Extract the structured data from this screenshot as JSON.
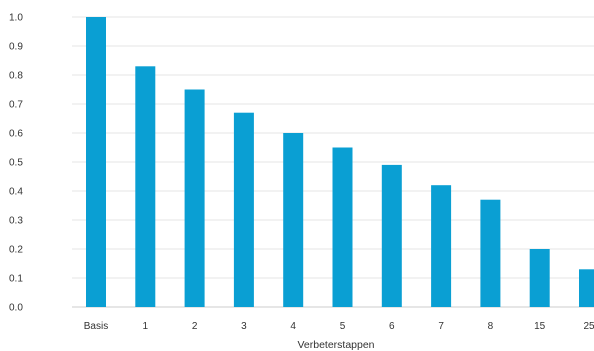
{
  "chart_data": {
    "type": "bar",
    "categories": [
      "Basis",
      "1",
      "2",
      "3",
      "4",
      "5",
      "6",
      "7",
      "8",
      "15",
      "25"
    ],
    "values": [
      1.0,
      0.83,
      0.75,
      0.67,
      0.6,
      0.55,
      0.49,
      0.42,
      0.37,
      0.2,
      0.13
    ],
    "title": "",
    "xlabel": "Verbeterstappen",
    "ylabel": "",
    "ylim": [
      0,
      1.0
    ],
    "yticks": [
      "0.0",
      "0.1",
      "0.2",
      "0.3",
      "0.4",
      "0.5",
      "0.6",
      "0.7",
      "0.8",
      "0.9",
      "1.0"
    ],
    "grid": true,
    "legend": "none",
    "bar_color": "#0a9fd3",
    "grid_color": "#e6e6e6"
  }
}
